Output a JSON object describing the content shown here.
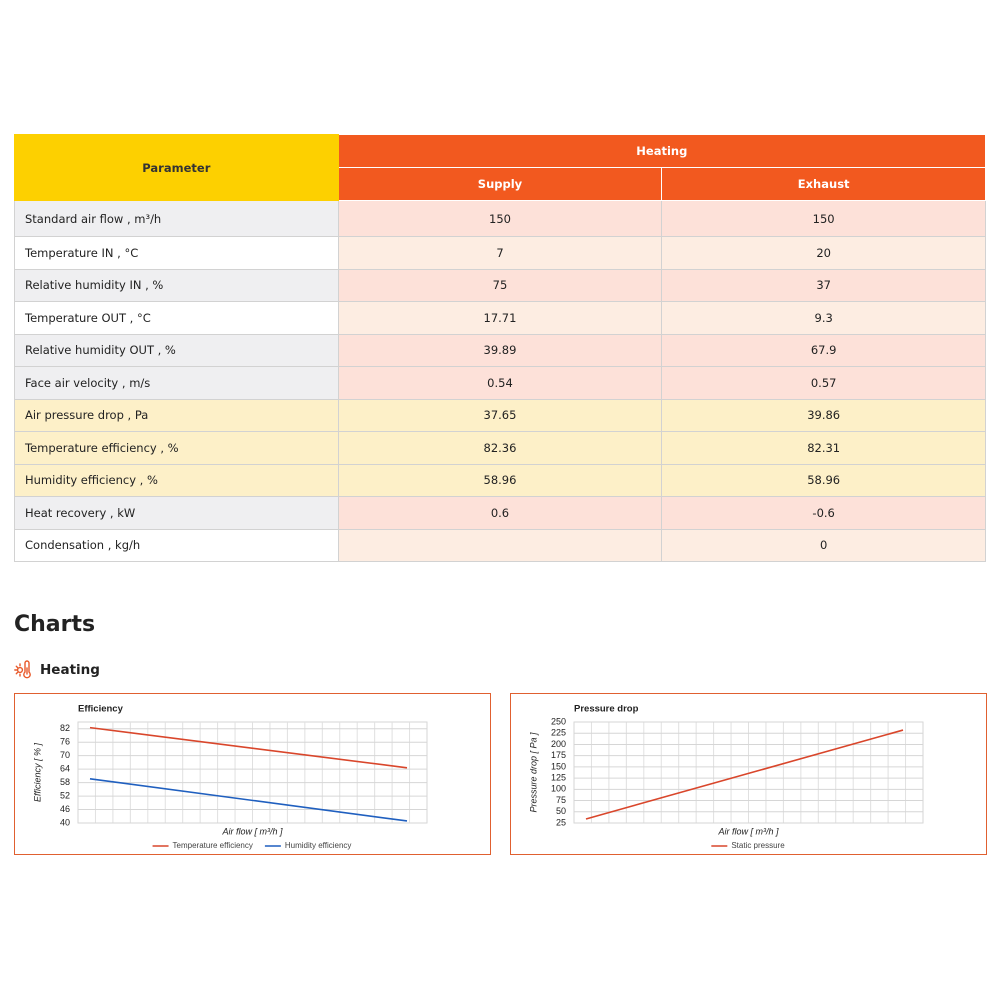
{
  "table": {
    "header": {
      "parameter": "Parameter",
      "group": "Heating",
      "columns": [
        "Supply",
        "Exhaust"
      ]
    },
    "rows": [
      {
        "label": "Standard air flow , m³/h",
        "values": [
          150,
          150
        ]
      },
      {
        "label": "Temperature IN , °C",
        "values": [
          7,
          20
        ]
      },
      {
        "label": "Relative humidity IN , %",
        "values": [
          75,
          37
        ]
      },
      {
        "label": "Temperature OUT , °C",
        "values": [
          17.71,
          9.3
        ]
      },
      {
        "label": "Relative humidity OUT , %",
        "values": [
          39.89,
          67.9
        ]
      },
      {
        "label": "Face air velocity , m/s",
        "values": [
          0.54,
          0.57
        ]
      },
      {
        "label": "Air pressure drop , Pa",
        "values": [
          37.65,
          39.86
        ]
      },
      {
        "label": "Temperature efficiency , %",
        "values": [
          82.36,
          82.31
        ]
      },
      {
        "label": "Humidity efficiency , %",
        "values": [
          58.96,
          58.96
        ]
      },
      {
        "label": "Heat recovery , kW",
        "values": [
          0.6,
          -0.6
        ]
      },
      {
        "label": "Condensation , kg/h",
        "values": [
          null,
          0
        ]
      }
    ]
  },
  "charts_section": {
    "title": "Charts",
    "subtitle": "Heating"
  },
  "chart_data": [
    {
      "type": "line",
      "title": "Efficiency",
      "x_label": "Air flow [ m³/h ]",
      "y_label": "Efficiency [ % ]",
      "categories": [
        null,
        null
      ],
      "ylim": [
        40,
        85
      ],
      "yticks": [
        40,
        46,
        52,
        58,
        64,
        70,
        76,
        82
      ],
      "grid": true,
      "legend": "bottom",
      "series": [
        {
          "name": "Temperature efficiency",
          "color": "#d9462b",
          "values": [
            82.5,
            64.6
          ]
        },
        {
          "name": "Humidity efficiency",
          "color": "#1f5fbf",
          "values": [
            59.7,
            40.9
          ]
        }
      ]
    },
    {
      "type": "line",
      "title": "Pressure drop",
      "x_label": "Air flow [ m³/h ]",
      "y_label": "Pressure drop [ Pa ]",
      "categories": [
        null,
        null
      ],
      "ylim": [
        25,
        250
      ],
      "yticks": [
        25,
        50,
        75,
        100,
        125,
        150,
        175,
        200,
        225,
        250
      ],
      "grid": true,
      "legend": "bottom",
      "series": [
        {
          "name": "Static pressure",
          "color": "#d9462b",
          "values": [
            34,
            232
          ]
        }
      ]
    }
  ]
}
